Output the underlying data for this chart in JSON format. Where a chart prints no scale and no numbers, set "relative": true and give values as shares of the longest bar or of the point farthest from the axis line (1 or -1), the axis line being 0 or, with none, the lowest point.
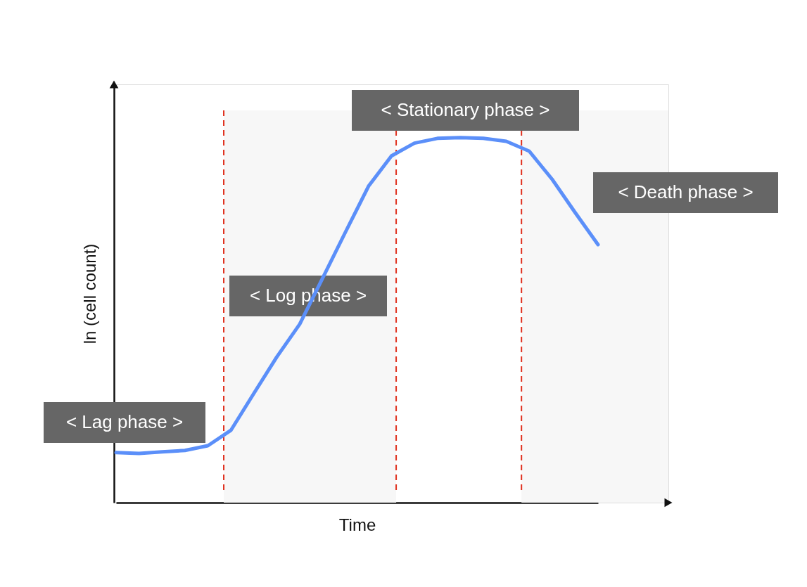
{
  "chart_data": {
    "type": "line",
    "relative": true,
    "xlabel": "Time",
    "ylabel": "ln (cell count)",
    "marker": "none",
    "line_style": "solid",
    "categories": [
      null,
      null,
      null,
      null,
      null,
      null,
      null,
      null,
      null,
      null,
      null,
      null,
      null,
      null,
      null,
      null,
      null,
      null,
      null,
      null,
      null,
      null
    ],
    "series": [
      {
        "color": "#5b8ff9",
        "values": [
          0.137,
          0.135,
          0.139,
          0.143,
          0.156,
          0.198,
          0.299,
          0.399,
          0.489,
          0.615,
          0.742,
          0.867,
          0.95,
          0.985,
          0.998,
          1,
          0.998,
          0.99,
          0.963,
          0.886,
          0.795,
          0.707
        ]
      }
    ],
    "annotations": [
      "< Lag phase >",
      "< Log phase >",
      "< Stationary phase >",
      "< Death phase >"
    ]
  }
}
